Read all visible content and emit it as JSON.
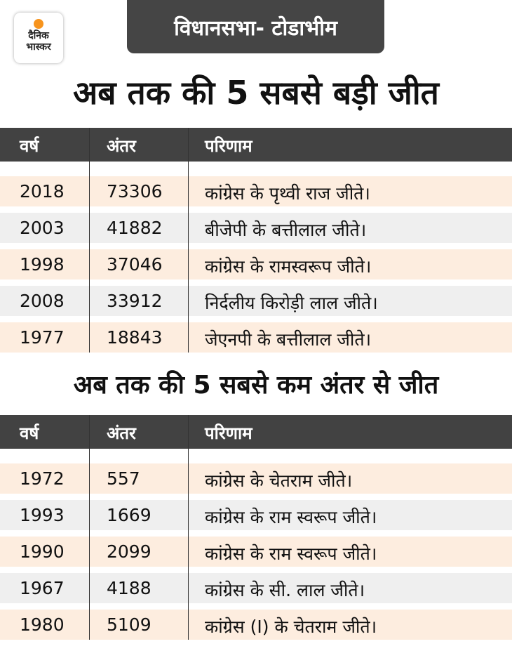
{
  "logo": {
    "text_line1": "दैनिक",
    "text_line2": "भास्कर",
    "accent": "#f7941d"
  },
  "header": {
    "label": "विधानसभा- टोडाभीम"
  },
  "section1": {
    "title": "अब तक की 5 सबसे बड़ी जीत",
    "columns": [
      "वर्ष",
      "अंतर",
      "परिणाम"
    ],
    "rows": [
      {
        "year": "2018",
        "margin": "73306",
        "result": "कांग्रेस के पृथ्वी राज जीते।"
      },
      {
        "year": "2003",
        "margin": "41882",
        "result": "बीजेपी के बत्तीलाल जीते।"
      },
      {
        "year": "1998",
        "margin": "37046",
        "result": "कांग्रेस के रामस्वरूप जीते।"
      },
      {
        "year": "2008",
        "margin": "33912",
        "result": "निर्दलीय किरोड़ी लाल जीते।"
      },
      {
        "year": "1977",
        "margin": "18843",
        "result": "जेएनपी के बत्तीलाल जीते।"
      }
    ]
  },
  "section2": {
    "title": "अब तक की 5 सबसे कम अंतर से जीत",
    "columns": [
      "वर्ष",
      "अंतर",
      "परिणाम"
    ],
    "rows": [
      {
        "year": "1972",
        "margin": "557",
        "result": "कांग्रेस के चेतराम जीते।"
      },
      {
        "year": "1993",
        "margin": "1669",
        "result": "कांग्रेस के राम स्वरूप जीते।"
      },
      {
        "year": "1990",
        "margin": "2099",
        "result": "कांग्रेस के राम स्वरूप जीते।"
      },
      {
        "year": "1967",
        "margin": "4188",
        "result": "कांग्रेस के सी. लाल जीते।"
      },
      {
        "year": "1980",
        "margin": "5109",
        "result": "कांग्रेस (I) के चेतराम जीते।"
      }
    ]
  },
  "colors": {
    "header_bg": "#424242",
    "row_cream": "#fdeddf",
    "row_gray": "#efefef"
  }
}
